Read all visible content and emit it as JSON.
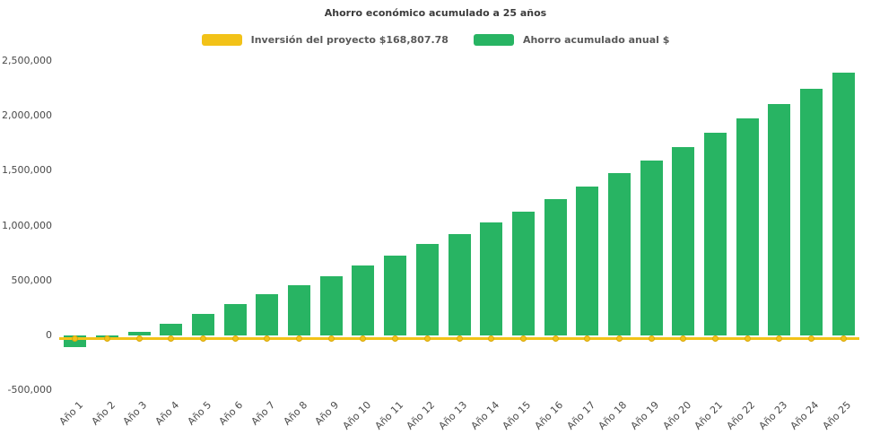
{
  "chart_data": {
    "type": "bar",
    "title": "Ahorro económico acumulado a 25 años",
    "categories": [
      "Año 1",
      "Año 2",
      "Año 3",
      "Año 4",
      "Año 5",
      "Año 6",
      "Año 7",
      "Año 8",
      "Año 9",
      "Año 10",
      "Año 11",
      "Año 12",
      "Año 13",
      "Año 14",
      "Año 15",
      "Año 16",
      "Año 17",
      "Año 18",
      "Año 19",
      "Año 20",
      "Año 21",
      "Año 22",
      "Año 23",
      "Año 24",
      "Año 25"
    ],
    "series": [
      {
        "name": "Inversión del proyecto $168,807.78",
        "type": "line",
        "color": "#F2C218",
        "marker": "circle",
        "constant_value": 0
      },
      {
        "name": "Ahorro acumulado anual $",
        "type": "bar",
        "color": "#28B463",
        "values": [
          -110000,
          -30000,
          35000,
          105000,
          195000,
          285000,
          375000,
          460000,
          540000,
          640000,
          730000,
          830000,
          925000,
          1025000,
          1130000,
          1245000,
          1355000,
          1475000,
          1590000,
          1715000,
          1845000,
          1975000,
          2105000,
          2245000,
          2390000
        ]
      }
    ],
    "xlabel": "",
    "ylabel": "",
    "ylim": [
      -500000,
      2500000
    ],
    "yticks": [
      -500000,
      0,
      500000,
      1000000,
      1500000,
      2000000,
      2500000
    ],
    "grid": false,
    "legend_position": "top"
  }
}
